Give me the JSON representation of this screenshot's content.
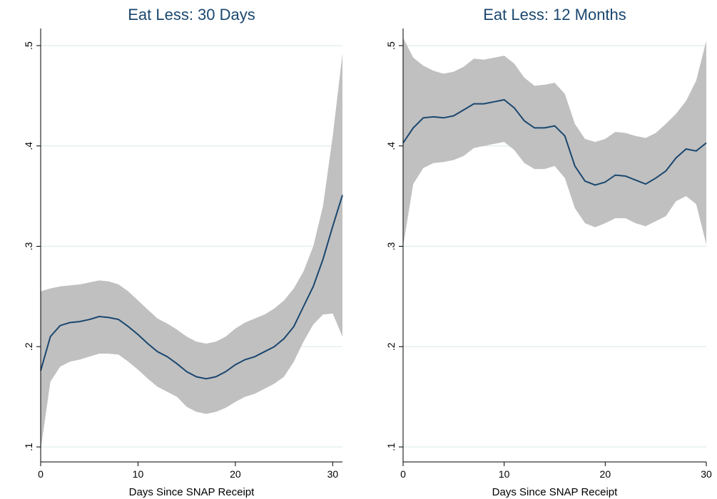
{
  "colors": {
    "line": "#1a476f",
    "band": "#c0c0c0",
    "grid": "#e5eff0",
    "axis": "#000000",
    "title": "#1a476f"
  },
  "chart_data": [
    {
      "type": "line",
      "title": "Eat Less: 30 Days",
      "xlabel": "Days Since SNAP Receipt",
      "ylabel": "",
      "xlim": [
        0,
        31
      ],
      "ylim": [
        0.1,
        0.5
      ],
      "xticks": [
        0,
        10,
        20,
        30
      ],
      "xtick_labels": [
        "0",
        "10",
        "20",
        "30"
      ],
      "yticks": [
        0.1,
        0.2,
        0.3,
        0.4,
        0.5
      ],
      "ytick_labels": [
        ".1",
        ".2",
        ".3",
        ".4",
        ".5"
      ],
      "grid": true,
      "x": [
        0,
        1,
        2,
        3,
        4,
        5,
        6,
        7,
        8,
        9,
        10,
        11,
        12,
        13,
        14,
        15,
        16,
        17,
        18,
        19,
        20,
        21,
        22,
        23,
        24,
        25,
        26,
        27,
        28,
        29,
        30,
        31
      ],
      "series": [
        {
          "values": [
            0.176,
            0.21,
            0.221,
            0.224,
            0.225,
            0.227,
            0.23,
            0.229,
            0.227,
            0.22,
            0.212,
            0.203,
            0.195,
            0.19,
            0.183,
            0.175,
            0.17,
            0.168,
            0.17,
            0.175,
            0.182,
            0.187,
            0.19,
            0.195,
            0.2,
            0.208,
            0.22,
            0.24,
            0.26,
            0.287,
            0.32,
            0.351
          ],
          "lower": [
            0.097,
            0.165,
            0.18,
            0.185,
            0.187,
            0.19,
            0.193,
            0.193,
            0.192,
            0.185,
            0.177,
            0.168,
            0.16,
            0.155,
            0.15,
            0.14,
            0.135,
            0.133,
            0.135,
            0.139,
            0.145,
            0.15,
            0.153,
            0.158,
            0.163,
            0.17,
            0.185,
            0.205,
            0.222,
            0.232,
            0.233,
            0.21
          ],
          "upper": [
            0.255,
            0.258,
            0.26,
            0.261,
            0.262,
            0.264,
            0.266,
            0.265,
            0.262,
            0.255,
            0.246,
            0.237,
            0.228,
            0.223,
            0.217,
            0.21,
            0.205,
            0.203,
            0.205,
            0.21,
            0.218,
            0.224,
            0.228,
            0.232,
            0.238,
            0.246,
            0.258,
            0.275,
            0.3,
            0.34,
            0.41,
            0.492
          ]
        }
      ]
    },
    {
      "type": "line",
      "title": "Eat Less: 12 Months",
      "xlabel": "Days Since SNAP Receipt",
      "ylabel": "",
      "xlim": [
        0,
        30
      ],
      "ylim": [
        0.1,
        0.5
      ],
      "xticks": [
        0,
        10,
        20,
        30
      ],
      "xtick_labels": [
        "0",
        "10",
        "20",
        "30"
      ],
      "yticks": [
        0.1,
        0.2,
        0.3,
        0.4,
        0.5
      ],
      "ytick_labels": [
        ".1",
        ".2",
        ".3",
        ".4",
        ".5"
      ],
      "grid": true,
      "x": [
        0,
        1,
        2,
        3,
        4,
        5,
        6,
        7,
        8,
        9,
        10,
        11,
        12,
        13,
        14,
        15,
        16,
        17,
        18,
        19,
        20,
        21,
        22,
        23,
        24,
        25,
        26,
        27,
        28,
        29,
        30
      ],
      "series": [
        {
          "values": [
            0.403,
            0.418,
            0.428,
            0.429,
            0.428,
            0.43,
            0.436,
            0.442,
            0.442,
            0.444,
            0.446,
            0.438,
            0.425,
            0.418,
            0.418,
            0.42,
            0.41,
            0.38,
            0.365,
            0.361,
            0.364,
            0.371,
            0.37,
            0.366,
            0.362,
            0.368,
            0.375,
            0.388,
            0.397,
            0.395,
            0.403
          ],
          "lower": [
            0.3,
            0.362,
            0.378,
            0.383,
            0.384,
            0.386,
            0.39,
            0.398,
            0.4,
            0.402,
            0.404,
            0.396,
            0.383,
            0.377,
            0.377,
            0.38,
            0.368,
            0.338,
            0.323,
            0.319,
            0.323,
            0.328,
            0.328,
            0.323,
            0.32,
            0.325,
            0.33,
            0.345,
            0.35,
            0.342,
            0.302
          ],
          "upper": [
            0.508,
            0.488,
            0.48,
            0.475,
            0.472,
            0.474,
            0.479,
            0.487,
            0.486,
            0.488,
            0.49,
            0.482,
            0.468,
            0.46,
            0.461,
            0.463,
            0.452,
            0.422,
            0.407,
            0.404,
            0.407,
            0.414,
            0.413,
            0.41,
            0.408,
            0.413,
            0.422,
            0.432,
            0.445,
            0.465,
            0.505
          ]
        }
      ]
    }
  ]
}
